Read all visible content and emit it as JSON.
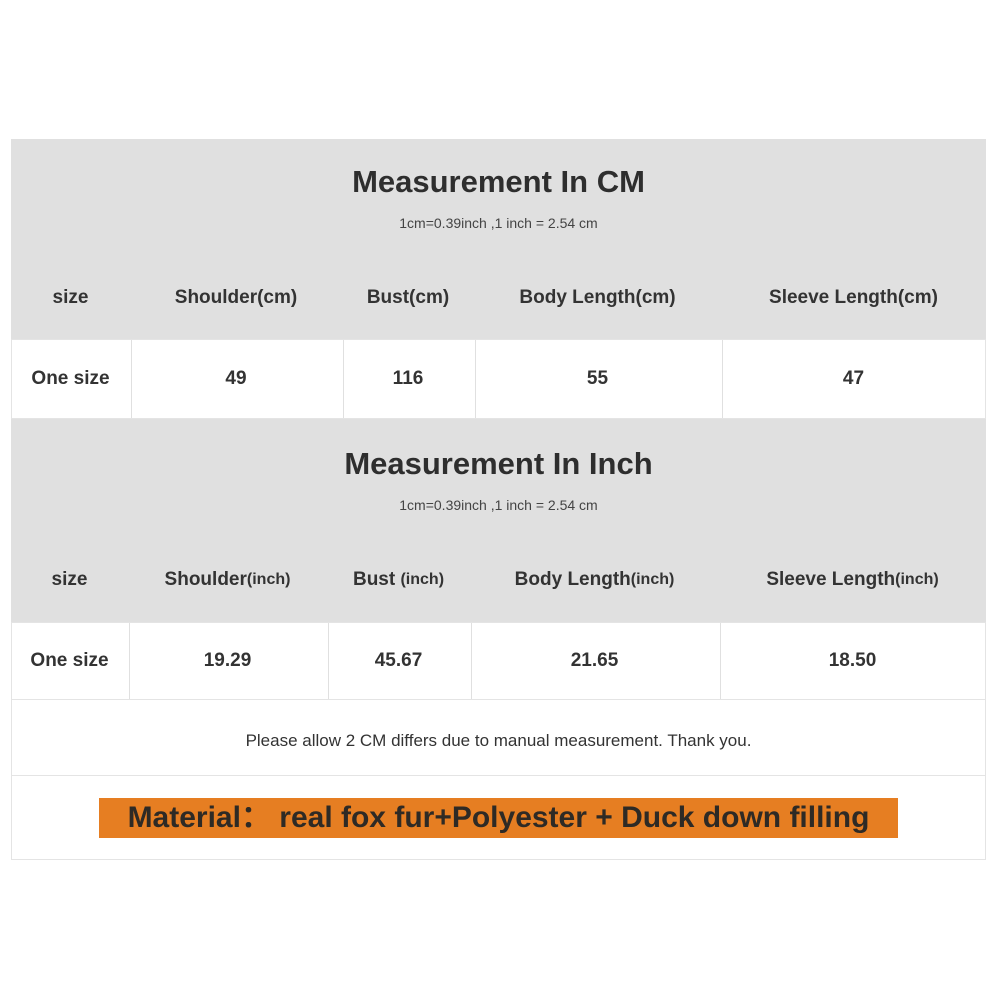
{
  "cm_section": {
    "title": "Measurement In CM",
    "conversion": "1cm=0.39inch ,1 inch = 2.54 cm",
    "headers": [
      "size",
      "Shoulder(cm)",
      "Bust(cm)",
      "Body Length(cm)",
      "Sleeve Length(cm)"
    ],
    "row": [
      "One size",
      "49",
      "116",
      "55",
      "47"
    ]
  },
  "inch_section": {
    "title": "Measurement In Inch",
    "conversion": "1cm=0.39inch ,1 inch = 2.54 cm",
    "headers": [
      {
        "main": "size",
        "unit": ""
      },
      {
        "main": "Shoulder",
        "unit": "(inch)"
      },
      {
        "main": "Bust ",
        "unit": "(inch)"
      },
      {
        "main": "Body Length",
        "unit": "(inch)"
      },
      {
        "main": "Sleeve Length",
        "unit": "(inch)"
      }
    ],
    "row": [
      "One size",
      "19.29",
      "45.67",
      "21.65",
      "18.50"
    ]
  },
  "note": "Please allow 2 CM differs due to manual measurement. Thank you.",
  "material": "Material： real fox fur+Polyester + Duck down filling",
  "colors": {
    "header_bg": "#e0e0e0",
    "material_highlight": "#e67e22"
  }
}
